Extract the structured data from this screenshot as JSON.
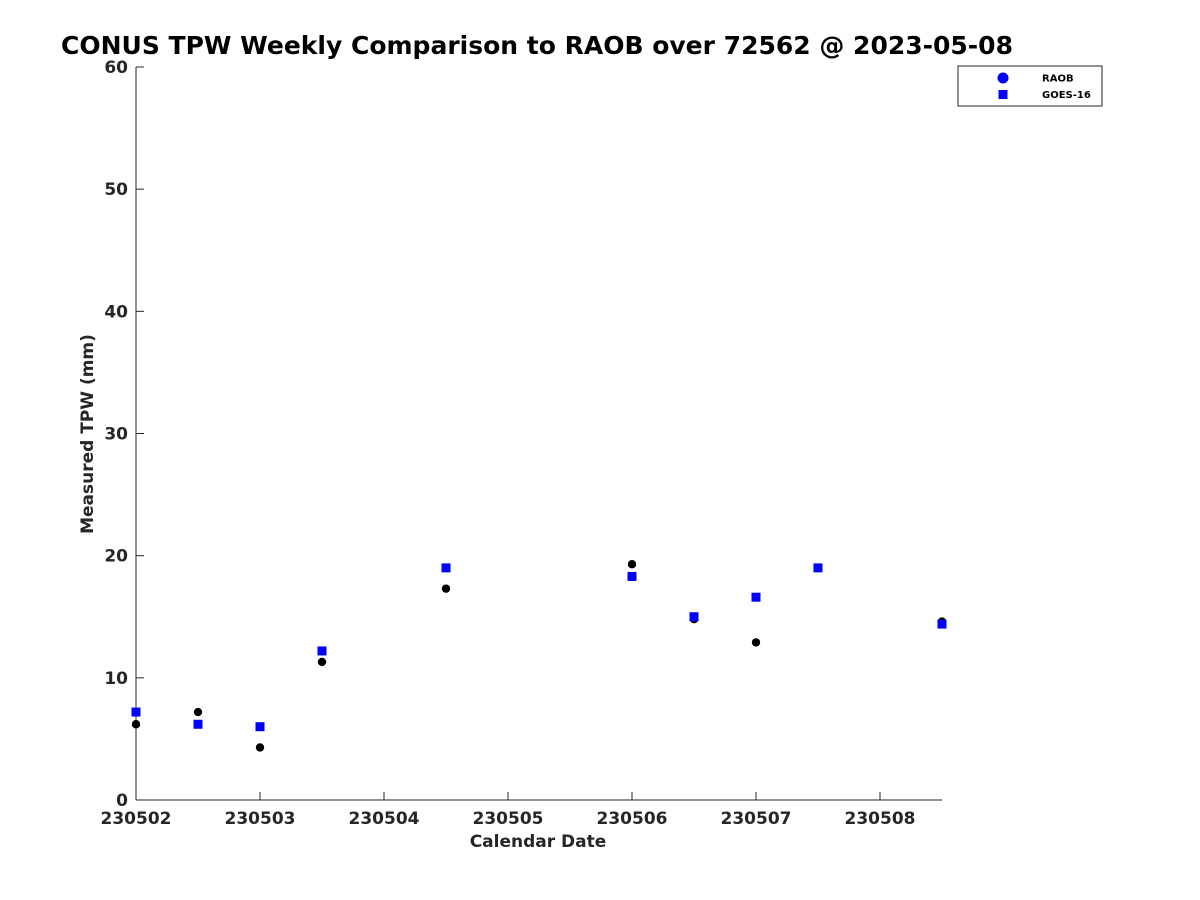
{
  "chart_data": {
    "type": "scatter",
    "title": "CONUS TPW Weekly Comparison to RAOB over 72562 @ 2023-05-08",
    "xlabel": "Calendar Date",
    "ylabel": "Measured TPW (mm)",
    "x_tick_labels": [
      "230502",
      "230503",
      "230504",
      "230505",
      "230506",
      "230507",
      "230508"
    ],
    "x_ticks": [
      230502,
      230503,
      230504,
      230505,
      230506,
      230507,
      230508
    ],
    "xlim": [
      230502,
      230508.5
    ],
    "y_ticks": [
      0,
      10,
      20,
      30,
      40,
      50,
      60
    ],
    "ylim": [
      0,
      60
    ],
    "grid": false,
    "legend_position": "top-right",
    "series": [
      {
        "name": "RAOB",
        "marker": "circle",
        "color": "#000000",
        "legend_color": "#0000ff",
        "points": [
          {
            "x": 230502.0,
            "y": 6.2
          },
          {
            "x": 230502.5,
            "y": 7.2
          },
          {
            "x": 230503.0,
            "y": 4.3
          },
          {
            "x": 230503.5,
            "y": 11.3
          },
          {
            "x": 230504.5,
            "y": 17.3
          },
          {
            "x": 230506.0,
            "y": 19.3
          },
          {
            "x": 230506.5,
            "y": 14.8
          },
          {
            "x": 230507.0,
            "y": 12.9
          },
          {
            "x": 230507.5,
            "y": 19.0
          },
          {
            "x": 230508.5,
            "y": 14.6
          }
        ]
      },
      {
        "name": "GOES-16",
        "marker": "square",
        "color": "#0000ff",
        "points": [
          {
            "x": 230502.0,
            "y": 7.2
          },
          {
            "x": 230502.5,
            "y": 6.2
          },
          {
            "x": 230503.0,
            "y": 6.0
          },
          {
            "x": 230503.5,
            "y": 12.2
          },
          {
            "x": 230504.5,
            "y": 19.0
          },
          {
            "x": 230506.0,
            "y": 18.3
          },
          {
            "x": 230506.5,
            "y": 15.0
          },
          {
            "x": 230507.0,
            "y": 16.6
          },
          {
            "x": 230507.5,
            "y": 19.0
          },
          {
            "x": 230508.5,
            "y": 14.4
          }
        ]
      }
    ]
  }
}
